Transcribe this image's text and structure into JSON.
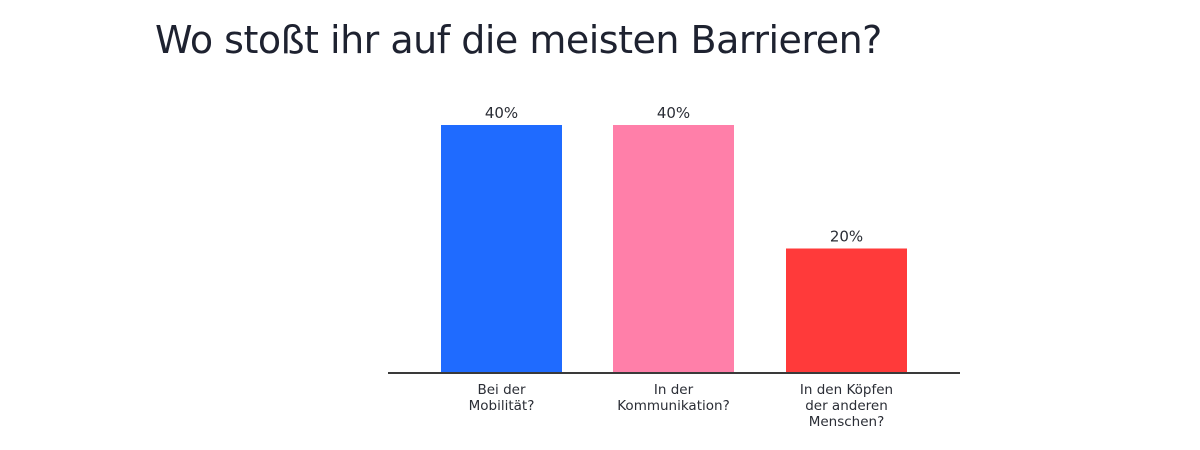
{
  "chart_data": {
    "type": "bar",
    "title": "Wo stoßt ihr auf die meisten Barrieren?",
    "categories": [
      [
        "Bei der",
        "Mobilität?"
      ],
      [
        "In der",
        "Kommunikation?"
      ],
      [
        "In den Köpfen",
        "der anderen",
        "Menschen?"
      ]
    ],
    "values": [
      40,
      40,
      20
    ],
    "value_labels": [
      "40%",
      "40%",
      "20%"
    ],
    "colors": [
      "#1f6bff",
      "#ff7fa9",
      "#ff3a3a"
    ],
    "ylim": [
      0,
      40
    ],
    "grid": false,
    "legend": "none"
  }
}
